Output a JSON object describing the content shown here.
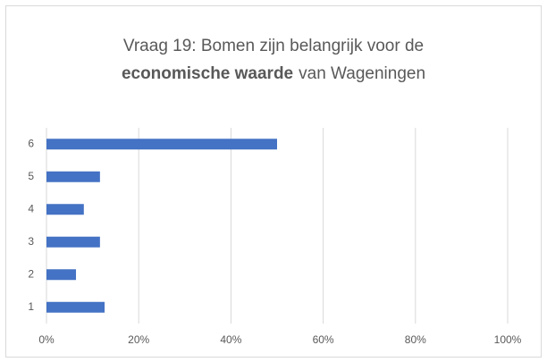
{
  "chart_data": {
    "type": "hbar",
    "title": [
      "Vraag 19: Bomen zijn belangrijk voor de",
      "economische waarde",
      "van Wageningen"
    ],
    "categories": [
      "1",
      "2",
      "3",
      "4",
      "5",
      "6"
    ],
    "values": [
      12.6,
      6.4,
      11.6,
      8.1,
      11.6,
      50
    ],
    "color": "#4472c4",
    "xlim": [
      0,
      100
    ],
    "xticks": [
      {
        "value": 0,
        "label": "0%"
      },
      {
        "value": 20,
        "label": "20%"
      },
      {
        "value": 40,
        "label": "40%"
      },
      {
        "value": 60,
        "label": "60%"
      },
      {
        "value": 80,
        "label": "80%"
      },
      {
        "value": 100,
        "label": "100%"
      }
    ],
    "grid": true
  }
}
